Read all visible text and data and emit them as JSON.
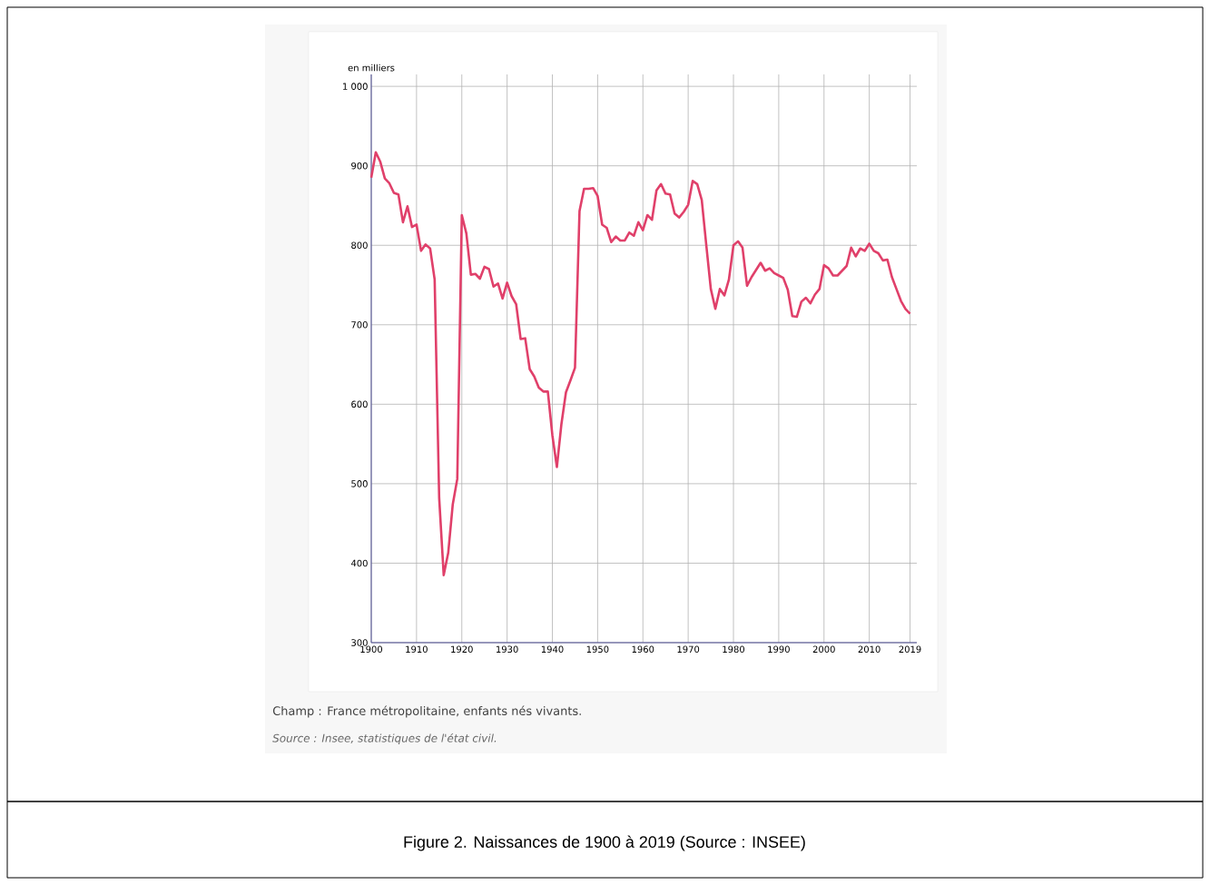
{
  "chart_data": {
    "type": "line",
    "ylabel": "en milliers",
    "x": [
      1900,
      1901,
      1902,
      1903,
      1904,
      1905,
      1906,
      1907,
      1908,
      1909,
      1910,
      1911,
      1912,
      1913,
      1914,
      1915,
      1916,
      1917,
      1918,
      1919,
      1920,
      1921,
      1922,
      1923,
      1924,
      1925,
      1926,
      1927,
      1928,
      1929,
      1930,
      1931,
      1932,
      1933,
      1934,
      1935,
      1936,
      1937,
      1938,
      1939,
      1940,
      1941,
      1942,
      1943,
      1944,
      1945,
      1946,
      1947,
      1948,
      1949,
      1950,
      1951,
      1952,
      1953,
      1954,
      1955,
      1956,
      1957,
      1958,
      1959,
      1960,
      1961,
      1962,
      1963,
      1964,
      1965,
      1966,
      1967,
      1968,
      1969,
      1970,
      1971,
      1972,
      1973,
      1974,
      1975,
      1976,
      1977,
      1978,
      1979,
      1980,
      1981,
      1982,
      1983,
      1984,
      1985,
      1986,
      1987,
      1988,
      1989,
      1990,
      1991,
      1992,
      1993,
      1994,
      1995,
      1996,
      1997,
      1998,
      1999,
      2000,
      2001,
      2002,
      2003,
      2004,
      2005,
      2006,
      2007,
      2008,
      2009,
      2010,
      2011,
      2012,
      2013,
      2014,
      2015,
      2016,
      2017,
      2018,
      2019
    ],
    "series": [
      {
        "color": "#e0406a",
        "values": [
          885,
          917,
          905,
          884,
          878,
          866,
          864,
          829,
          849,
          823,
          826,
          793,
          801,
          796,
          757,
          482,
          385,
          413,
          474,
          506,
          838,
          815,
          763,
          764,
          758,
          773,
          770,
          748,
          752,
          733,
          753,
          736,
          726,
          682,
          683,
          644,
          635,
          621,
          616,
          616,
          561,
          521,
          575,
          615,
          630,
          646,
          843,
          871,
          871,
          872,
          862,
          826,
          822,
          804,
          811,
          806,
          806,
          816,
          812,
          829,
          819,
          838,
          832,
          869,
          877,
          865,
          864,
          840,
          835,
          842,
          851,
          881,
          877,
          857,
          800,
          745,
          720,
          745,
          737,
          757,
          800,
          805,
          797,
          749,
          760,
          769,
          778,
          768,
          771,
          765,
          762,
          759,
          744,
          711,
          710,
          729,
          734,
          727,
          738,
          745,
          775,
          771,
          762,
          762,
          768,
          774,
          797,
          786,
          796,
          793,
          802,
          793,
          790,
          781,
          782,
          760,
          745,
          730,
          720,
          714
        ]
      }
    ],
    "xlim": [
      1900,
      2020.5
    ],
    "ylim": [
      300,
      1015
    ],
    "xticks": [
      1900,
      1910,
      1920,
      1930,
      1940,
      1950,
      1960,
      1970,
      1980,
      1990,
      2000,
      2010,
      2019
    ],
    "yticks": [
      300,
      400,
      500,
      600,
      700,
      800,
      900,
      {
        "value": 1000,
        "label": "1 000"
      }
    ],
    "grid": true,
    "annotations": [
      "Champ : France métropolitaine, enfants nés vivants.",
      "*Source : Insee, statistiques de l'état civil.*",
      "Figure 2. Naissances de 1900 à 2019 (Source : INSEE)"
    ]
  }
}
